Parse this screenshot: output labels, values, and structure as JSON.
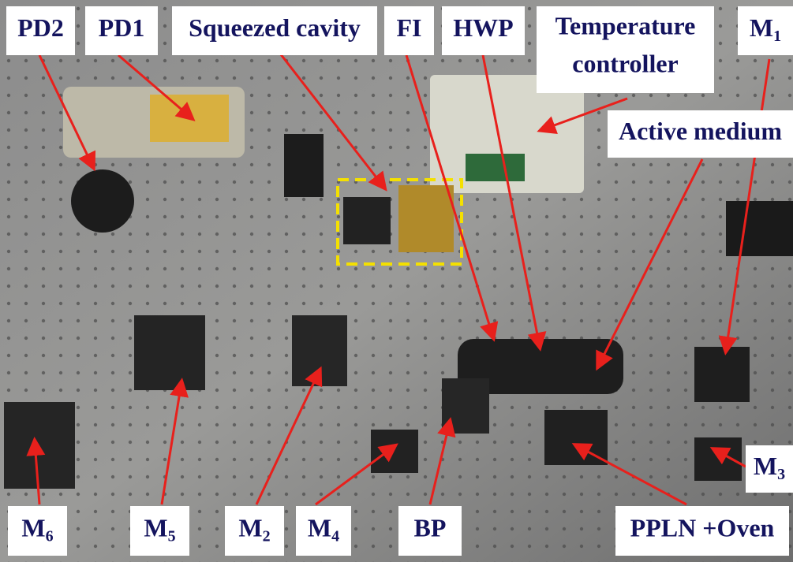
{
  "labels": [
    {
      "text": "PD2"
    },
    {
      "text": "PD1"
    },
    {
      "text": "Squeezed cavity"
    },
    {
      "text": "FI"
    },
    {
      "text": "HWP"
    },
    {
      "lines": [
        "Temperature",
        "controller"
      ]
    },
    {
      "text": "M",
      "sub": "1"
    },
    {
      "text": "Active medium"
    },
    {
      "text": "M",
      "sub": "3"
    },
    {
      "text": "M",
      "sub": "6"
    },
    {
      "text": "M",
      "sub": "5"
    },
    {
      "text": "M",
      "sub": "2"
    },
    {
      "text": "M",
      "sub": "4"
    },
    {
      "text": "BP"
    },
    {
      "text": "PPLN +Oven"
    }
  ]
}
